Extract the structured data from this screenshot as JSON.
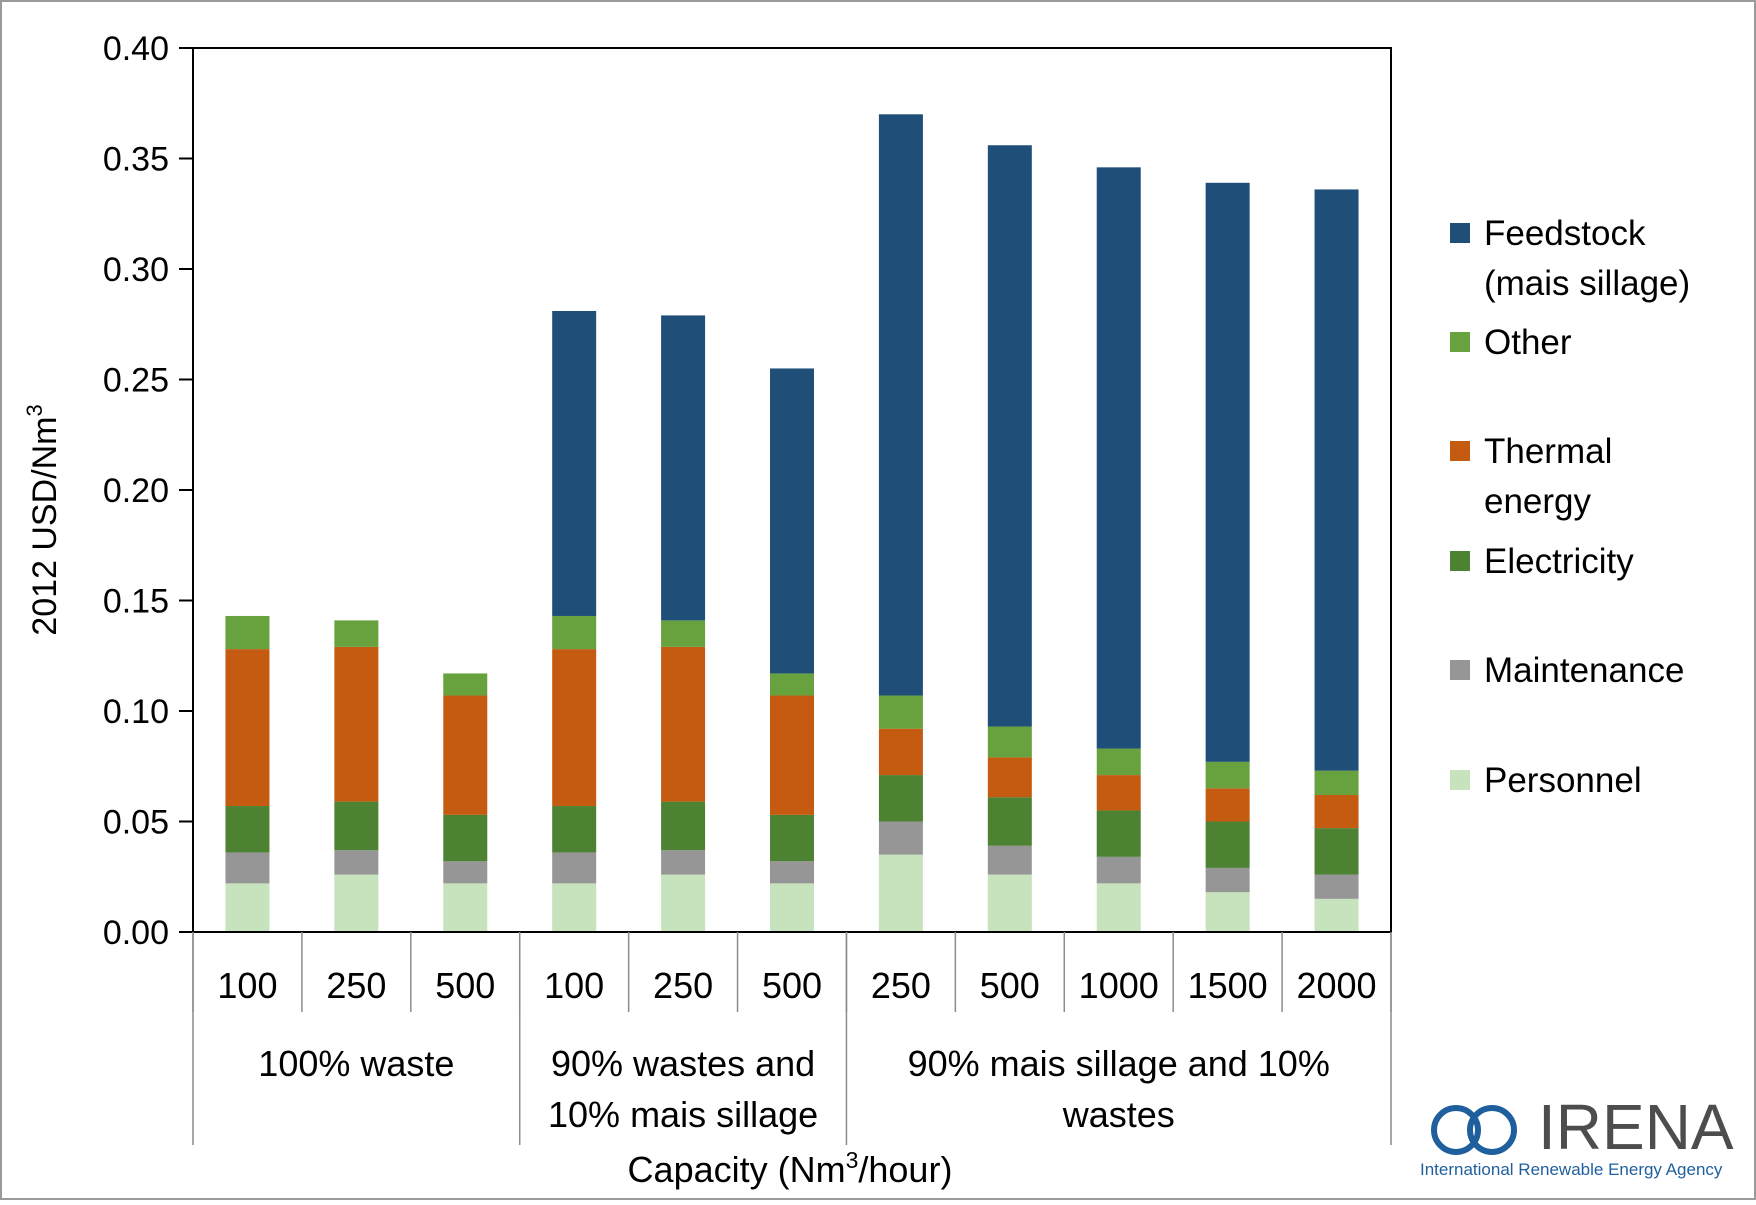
{
  "chart_data": {
    "type": "bar",
    "stacked": true,
    "ylabel": "2012 USD/Nm",
    "ylabel_sup": "3",
    "xlabel_prefix": "Capacity (Nm",
    "xlabel_sup": "3",
    "xlabel_suffix": "/hour)",
    "ylim": [
      0,
      0.4
    ],
    "y_ticks": [
      "0.00",
      "0.05",
      "0.10",
      "0.15",
      "0.20",
      "0.25",
      "0.30",
      "0.35",
      "0.40"
    ],
    "grid": false,
    "legend_position": "right",
    "categories": [
      "100",
      "250",
      "500",
      "100",
      "250",
      "500",
      "250",
      "500",
      "1000",
      "1500",
      "2000"
    ],
    "groups": [
      {
        "label_lines": [
          "100% waste"
        ],
        "span": 3
      },
      {
        "label_lines": [
          "90% wastes and",
          "10% mais sillage"
        ],
        "span": 3
      },
      {
        "label_lines": [
          "90% mais sillage and 10%",
          "wastes"
        ],
        "span": 5
      }
    ],
    "series": [
      {
        "name": "Personnel",
        "color": "#c6e3bd",
        "values": [
          0.022,
          0.026,
          0.022,
          0.022,
          0.026,
          0.022,
          0.035,
          0.026,
          0.022,
          0.018,
          0.015
        ]
      },
      {
        "name": "Maintenance",
        "color": "#969696",
        "values": [
          0.014,
          0.011,
          0.01,
          0.014,
          0.011,
          0.01,
          0.015,
          0.013,
          0.012,
          0.011,
          0.011
        ]
      },
      {
        "name": "Electricity",
        "color": "#4d8233",
        "values": [
          0.021,
          0.022,
          0.021,
          0.021,
          0.022,
          0.021,
          0.021,
          0.022,
          0.021,
          0.021,
          0.021
        ]
      },
      {
        "name": "Thermal energy",
        "name_lines": [
          "Thermal",
          "energy"
        ],
        "color": "#c55a11",
        "values": [
          0.071,
          0.07,
          0.054,
          0.071,
          0.07,
          0.054,
          0.021,
          0.018,
          0.016,
          0.015,
          0.015
        ]
      },
      {
        "name": "Other",
        "color": "#67a23e",
        "values": [
          0.015,
          0.012,
          0.01,
          0.015,
          0.012,
          0.01,
          0.015,
          0.014,
          0.012,
          0.012,
          0.011
        ]
      },
      {
        "name": "Feedstock (mais sillage)",
        "name_lines": [
          "Feedstock",
          "(mais sillage)"
        ],
        "color": "#1f4e79",
        "values": [
          0,
          0,
          0,
          0.138,
          0.138,
          0.138,
          0.263,
          0.263,
          0.263,
          0.262,
          0.263
        ]
      }
    ],
    "legend_order": [
      5,
      4,
      3,
      2,
      1,
      0
    ]
  },
  "logo": {
    "name": "IRENA",
    "subtitle": "International Renewable Energy Agency",
    "color": "#1f5f9e"
  }
}
